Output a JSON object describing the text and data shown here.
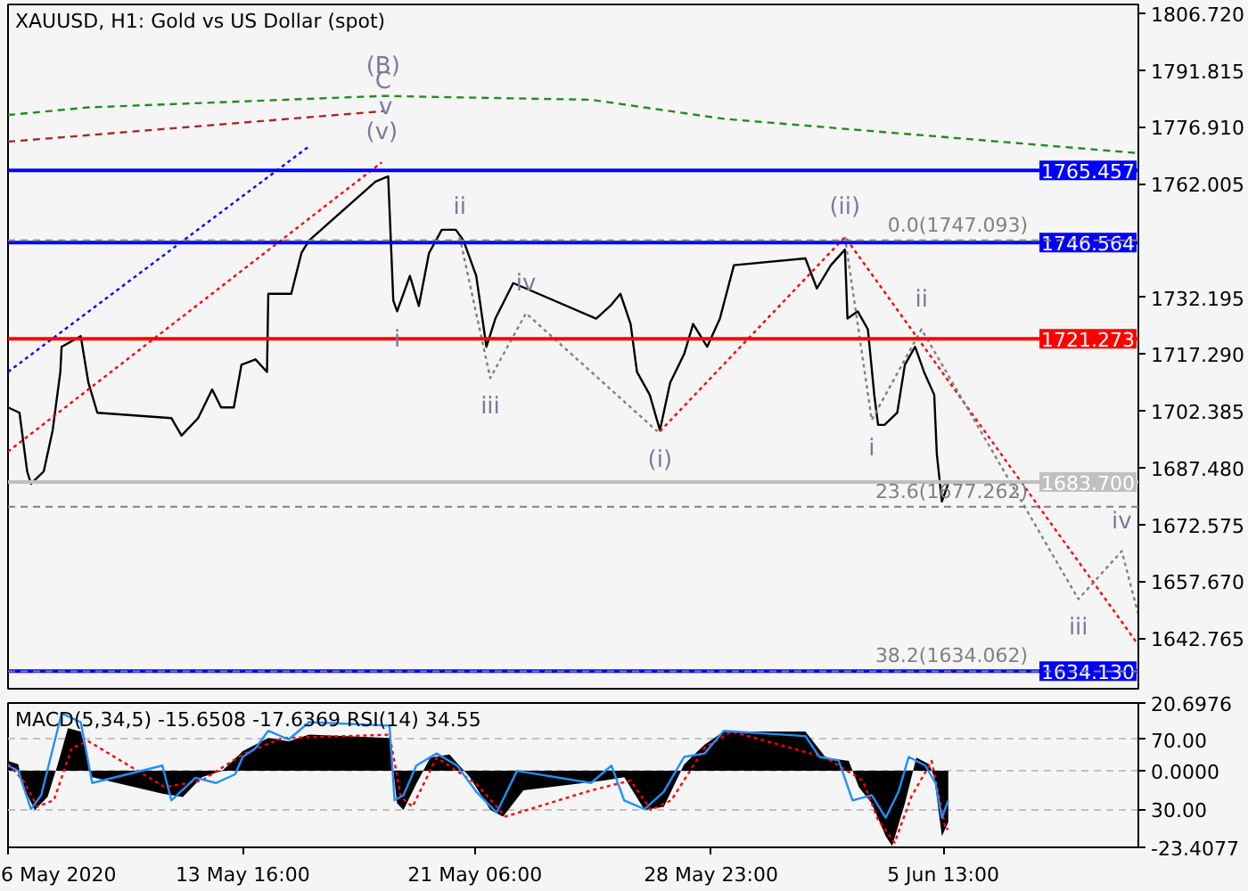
{
  "chart_data": [
    {
      "type": "line",
      "title": "XAUUSD, H1:  Gold vs US Dollar (spot)",
      "tick_labels": "y",
      "grid": false,
      "xlim": [
        "2020-05-06T00:00",
        "2020-06-11T22:00"
      ],
      "ylim": [
        1629.5,
        1809.0
      ],
      "yticks": [
        {
          "value": 1806.72,
          "label": "1806.720"
        },
        {
          "value": 1791.815,
          "label": "1791.815"
        },
        {
          "value": 1776.91,
          "label": "1776.910"
        },
        {
          "value": 1762.005,
          "label": "1762.005"
        },
        {
          "value": 1732.195,
          "label": "1732.195"
        },
        {
          "value": 1717.29,
          "label": "1717.290"
        },
        {
          "value": 1702.385,
          "label": "1702.385"
        },
        {
          "value": 1687.48,
          "label": "1687.480"
        },
        {
          "value": 1672.575,
          "label": "1672.575"
        },
        {
          "value": 1657.67,
          "label": "1657.670"
        },
        {
          "value": 1642.765,
          "label": "1642.765"
        }
      ],
      "series": [
        {
          "color": "#000000",
          "line_style": "solid",
          "x": [
            "2020-05-06T00:00",
            "2020-05-06T09:00",
            "2020-05-06T15:00",
            "2020-05-06T18:00",
            "2020-05-07T04:00",
            "2020-05-07T11:00",
            "2020-05-07T17:00",
            "2020-05-07T18:00",
            "2020-05-08T09:00",
            "2020-05-08T15:00",
            "2020-05-08T22:00",
            "2020-05-11T08:00",
            "2020-05-11T16:00",
            "2020-05-12T05:00",
            "2020-05-12T16:00",
            "2020-05-12T23:00",
            "2020-05-13T09:00",
            "2020-05-13T15:00",
            "2020-05-14T02:00",
            "2020-05-14T11:00",
            "2020-05-14T12:00",
            "2020-05-15T06:00",
            "2020-05-15T14:00",
            "2020-05-15T20:00",
            "2020-05-18T00:00",
            "2020-05-18T10:00",
            "2020-05-18T14:00",
            "2020-05-18T17:00",
            "2020-05-19T03:00",
            "2020-05-19T10:00",
            "2020-05-19T18:00",
            "2020-05-20T04:00",
            "2020-05-20T15:00",
            "2020-05-20T21:00",
            "2020-05-21T07:00",
            "2020-05-21T15:00",
            "2020-05-21T22:00",
            "2020-05-22T12:00",
            "2020-05-22T22:00",
            "2020-05-25T05:00",
            "2020-05-25T16:00",
            "2020-05-26T00:00",
            "2020-05-26T08:00",
            "2020-05-26T13:00",
            "2020-05-26T23:00",
            "2020-05-27T07:00",
            "2020-05-27T15:00",
            "2020-05-28T02:00",
            "2020-05-28T09:00",
            "2020-05-28T20:00",
            "2020-05-29T06:00",
            "2020-05-29T17:00",
            "2020-06-01T01:00",
            "2020-06-01T10:00",
            "2020-06-01T21:00",
            "2020-06-02T08:00",
            "2020-06-02T10:00",
            "2020-06-02T18:00",
            "2020-06-03T02:00",
            "2020-06-03T07:00",
            "2020-06-03T10:00",
            "2020-06-03T15:00",
            "2020-06-04T01:00",
            "2020-06-04T07:00",
            "2020-06-04T15:00",
            "2020-06-04T22:00",
            "2020-06-05T06:00",
            "2020-06-05T08:00",
            "2020-06-05T12:00",
            "2020-06-05T17:00"
          ],
          "values": [
            1703.3,
            1701.9,
            1686.5,
            1683.3,
            1686.5,
            1697.3,
            1712.6,
            1719.2,
            1722.0,
            1709.8,
            1701.9,
            1700.5,
            1695.9,
            1700.5,
            1708.0,
            1703.3,
            1703.3,
            1714.5,
            1715.9,
            1712.6,
            1733.1,
            1733.1,
            1743.8,
            1747.1,
            1762.5,
            1763.9,
            1731.3,
            1728.5,
            1737.8,
            1729.9,
            1743.8,
            1749.9,
            1749.9,
            1747.1,
            1737.8,
            1719.2,
            1726.6,
            1735.9,
            1734.5,
            1726.6,
            1729.9,
            1733.1,
            1725.2,
            1712.6,
            1706.6,
            1697.3,
            1709.8,
            1717.3,
            1725.2,
            1719.2,
            1726.6,
            1740.6,
            1742.4,
            1734.5,
            1740.6,
            1744.7,
            1726.6,
            1728.5,
            1723.8,
            1706.6,
            1698.7,
            1698.7,
            1701.9,
            1714.5,
            1719.2,
            1712.6,
            1706.6,
            1691.2,
            1678.6,
            1683.3
          ]
        },
        {
          "color": "#228b22",
          "line_style": "dashed",
          "x": [
            "2020-05-06T00:00",
            "2020-05-08T15:00",
            "2020-05-18T06:00",
            "2020-05-25T01:00",
            "2020-05-29T09:00",
            "2020-06-11T22:00"
          ],
          "values": [
            1780.0,
            1782.0,
            1785.0,
            1784.0,
            1779.0,
            1770.0
          ]
        },
        {
          "color": "#a52a2a",
          "line_style": "dashed",
          "x": [
            "2020-05-06T00:00",
            "2020-05-18T06:00"
          ],
          "values": [
            1773.0,
            1781.0
          ]
        },
        {
          "color": "#0000ff",
          "line_style": "dotted",
          "x": [
            "2020-05-06T00:00",
            "2020-05-15T20:00"
          ],
          "values": [
            1712.6,
            1771.8
          ]
        },
        {
          "color": "#ff0000",
          "line_style": "dotted",
          "x": [
            "2020-05-06T00:00",
            "2020-05-18T05:00"
          ],
          "values": [
            1691.7,
            1767.6
          ]
        },
        {
          "color": "#ff0000",
          "line_style": "dotted",
          "x": [
            "2020-05-27T07:00",
            "2020-06-02T08:00",
            "2020-06-11T22:00"
          ],
          "values": [
            1697.0,
            1748.0,
            1641.0
          ]
        },
        {
          "color": "#808080",
          "line_style": "dotted",
          "x": [
            "2020-05-20T18:00",
            "2020-05-21T18:00",
            "2020-05-22T22:00",
            "2020-05-27T05:00"
          ],
          "values": [
            1748.0,
            1711.0,
            1728.0,
            1697.0
          ]
        },
        {
          "color": "#808080",
          "line_style": "dotted",
          "x": [
            "2020-06-02T08:00",
            "2020-06-03T05:00",
            "2020-06-04T20:00",
            "2020-06-09T23:00",
            "2020-06-11T09:00",
            "2020-06-11T22:00"
          ],
          "values": [
            1748.0,
            1700.0,
            1723.8,
            1653.0,
            1665.6,
            1649.0
          ]
        }
      ],
      "ref_lines": [
        {
          "axis": "y",
          "value": 1765.457,
          "label": "1765.457",
          "color": "#0000ff",
          "line_style": "solid"
        },
        {
          "axis": "y",
          "value": 1746.564,
          "label": "1746.564",
          "color": "#0000ff",
          "line_style": "solid"
        },
        {
          "axis": "y",
          "value": 1721.273,
          "label": "1721.273",
          "color": "#ff0000",
          "line_style": "solid"
        },
        {
          "axis": "y",
          "value": 1683.7,
          "label": "1683.700",
          "color": "#c0c0c0",
          "line_style": "solid"
        },
        {
          "axis": "y",
          "value": 1634.13,
          "label": "1634.130",
          "color": "#0000ff",
          "line_style": "solid"
        },
        {
          "axis": "y",
          "value": 1747.093,
          "label": "0.0(1747.093)",
          "color": "#808080",
          "line_style": "dashed"
        },
        {
          "axis": "y",
          "value": 1677.262,
          "label": "23.6(1677.262)",
          "color": "#808080",
          "line_style": "dashed"
        },
        {
          "axis": "y",
          "value": 1634.062,
          "label": "38.2(1634.062)",
          "color": "#808080",
          "line_style": "dashed"
        }
      ],
      "annotations": [
        {
          "text": "(B)",
          "x": "2020-05-18T06:00",
          "y": 1785.0
        },
        {
          "text": "C",
          "x": "2020-05-18T06:00",
          "y": 1781.0
        },
        {
          "text": "v",
          "x": "2020-05-18T08:00",
          "y": 1782.0
        },
        {
          "text": "(v)",
          "x": "2020-05-18T05:00",
          "y": 1767.6
        },
        {
          "text": "ii",
          "x": "2020-05-20T18:00",
          "y": 1748.0
        },
        {
          "text": "i",
          "x": "2020-05-18T17:00",
          "y": 1728.5
        },
        {
          "text": "iii",
          "x": "2020-05-21T18:00",
          "y": 1711.0
        },
        {
          "text": "iv",
          "x": "2020-05-22T22:00",
          "y": 1728.0
        },
        {
          "text": "(i)",
          "x": "2020-05-27T07:00",
          "y": 1697.0
        },
        {
          "text": "(ii)",
          "x": "2020-06-02T08:00",
          "y": 1748.0
        },
        {
          "text": "i",
          "x": "2020-06-03T05:00",
          "y": 1700.0
        },
        {
          "text": "ii",
          "x": "2020-06-04T20:00",
          "y": 1723.8
        },
        {
          "text": "iii",
          "x": "2020-06-09T23:00",
          "y": 1653.0
        },
        {
          "text": "iv",
          "x": "2020-06-11T09:00",
          "y": 1665.6
        }
      ]
    },
    {
      "type": "area",
      "title": "MACD(5,34,5) -15.6508 -17.6369 RSI(14) 34.55",
      "grid": "y",
      "xlim": [
        "2020-05-06T00:00",
        "2020-06-11T22:00"
      ],
      "ylim": [
        -23.4077,
        20.6976
      ],
      "y2lim": [
        8,
        91
      ],
      "xticks": [
        {
          "value": "2020-05-06T00:00",
          "label": "6 May 2020"
        },
        {
          "value": "2020-05-13T16:00",
          "label": "13 May 16:00"
        },
        {
          "value": "2020-05-21T06:00",
          "label": "21 May 06:00"
        },
        {
          "value": "2020-05-28T23:00",
          "label": "28 May 23:00"
        },
        {
          "value": "2020-06-05T13:00",
          "label": "5 Jun 13:00"
        }
      ],
      "yticks": [
        {
          "value": 20.6976,
          "label": "20.6976"
        },
        {
          "value": 0,
          "label": "0.0000"
        },
        {
          "value": -23.4077,
          "label": "-23.4077"
        }
      ],
      "y2ticks": [
        {
          "value": 70,
          "label": "70.00"
        },
        {
          "value": 30,
          "label": "30.00"
        }
      ],
      "series": [
        {
          "type": "area",
          "color": "#000000",
          "x": [
            "2020-05-06T00:00",
            "2020-05-06T08:00",
            "2020-05-06T12:00",
            "2020-05-06T21:00",
            "2020-05-07T07:00",
            "2020-05-07T15:00",
            "2020-05-07T23:00",
            "2020-05-08T09:00",
            "2020-05-08T18:00",
            "2020-05-11T01:00",
            "2020-05-11T17:00",
            "2020-05-12T08:00",
            "2020-05-13T00:00",
            "2020-05-13T16:00",
            "2020-05-14T12:00",
            "2020-05-15T04:00",
            "2020-05-15T20:00",
            "2020-05-18T11:00",
            "2020-05-18T17:00",
            "2020-05-18T22:00",
            "2020-05-19T08:00",
            "2020-05-19T19:00",
            "2020-05-20T10:00",
            "2020-05-21T02:00",
            "2020-05-21T18:00",
            "2020-05-22T04:00",
            "2020-05-22T20:00",
            "2020-05-25T11:00",
            "2020-05-26T03:00",
            "2020-05-26T19:00",
            "2020-05-27T10:00",
            "2020-05-28T02:00",
            "2020-05-28T18:00",
            "2020-05-29T09:00",
            "2020-06-01T01:00",
            "2020-06-01T17:00",
            "2020-06-02T11:00",
            "2020-06-02T19:00",
            "2020-06-03T05:00",
            "2020-06-03T16:00",
            "2020-06-03T21:00",
            "2020-06-04T07:00",
            "2020-06-04T16:00",
            "2020-06-05T02:00",
            "2020-06-05T06:00",
            "2020-06-05T12:00",
            "2020-06-05T17:00"
          ],
          "values": [
            3,
            2,
            -5,
            -12,
            -8,
            2,
            13,
            12,
            -2,
            -7,
            -8,
            -2,
            0,
            6,
            10,
            9,
            11,
            10,
            -10,
            -12,
            -4,
            4,
            5,
            -2,
            -12,
            -14,
            -6,
            -3,
            -2,
            -12,
            -11,
            2,
            8,
            12,
            12,
            4,
            3,
            -5,
            -10,
            -20,
            -23,
            -10,
            4,
            2,
            -2,
            -20,
            -15.7
          ]
        },
        {
          "type": "line",
          "color": "#ff0000",
          "line_style": "dotted",
          "x": [
            "2020-05-06T00:00",
            "2020-05-06T12:00",
            "2020-05-06T23:00",
            "2020-05-07T12:00",
            "2020-05-08T02:00",
            "2020-05-08T15:00",
            "2020-05-11T03:00",
            "2020-05-12T08:00",
            "2020-05-13T16:00",
            "2020-05-14T23:00",
            "2020-05-18T11:00",
            "2020-05-18T20:00",
            "2020-05-19T05:00",
            "2020-05-20T00:00",
            "2020-05-21T07:00",
            "2020-05-22T06:00",
            "2020-05-25T01:00",
            "2020-05-26T08:00",
            "2020-05-27T00:00",
            "2020-05-27T16:00",
            "2020-05-28T18:00",
            "2020-05-29T15:00",
            "2020-06-01T17:00",
            "2020-06-02T22:00",
            "2020-06-03T10:00",
            "2020-06-03T23:00",
            "2020-06-04T12:00",
            "2020-06-05T04:00",
            "2020-06-05T15:00",
            "2020-06-05T17:00"
          ],
          "values": [
            2,
            -3,
            -11,
            -9,
            7,
            9,
            -5,
            -3,
            5,
            10,
            11,
            -8,
            -11,
            4,
            -4,
            -14,
            -6,
            -3,
            -12,
            -9,
            7,
            12,
            4,
            -3,
            -15,
            -22,
            -8,
            3,
            -18,
            -17.6
          ]
        },
        {
          "type": "line",
          "axis": "y2",
          "color": "#1e90ff",
          "line_style": "solid",
          "x": [
            "2020-05-06T00:00",
            "2020-05-06T08:00",
            "2020-05-06T18:00",
            "2020-05-07T02:00",
            "2020-05-07T18:00",
            "2020-05-08T09:00",
            "2020-05-08T18:00",
            "2020-05-11T01:00",
            "2020-05-11T08:00",
            "2020-05-12T03:00",
            "2020-05-12T19:00",
            "2020-05-13T10:00",
            "2020-05-13T16:00",
            "2020-05-14T02:00",
            "2020-05-14T12:00",
            "2020-05-15T04:00",
            "2020-05-15T20:00",
            "2020-05-18T11:00",
            "2020-05-18T15:00",
            "2020-05-18T22:00",
            "2020-05-19T08:00",
            "2020-05-20T00:00",
            "2020-05-20T16:00",
            "2020-05-21T07:00",
            "2020-05-21T23:00",
            "2020-05-22T15:00",
            "2020-05-25T01:00",
            "2020-05-25T17:00",
            "2020-05-26T03:00",
            "2020-05-26T19:00",
            "2020-05-27T10:00",
            "2020-05-28T02:00",
            "2020-05-28T18:00",
            "2020-05-29T09:00",
            "2020-06-01T01:00",
            "2020-06-01T12:00",
            "2020-06-02T03:00",
            "2020-06-02T14:00",
            "2020-06-03T05:00",
            "2020-06-03T16:00",
            "2020-06-04T02:00",
            "2020-06-04T10:00",
            "2020-06-04T23:00",
            "2020-06-05T07:00",
            "2020-06-05T12:00",
            "2020-06-05T17:00"
          ],
          "values": [
            55,
            52,
            30,
            38,
            85,
            80,
            45,
            55,
            35,
            48,
            45,
            50,
            60,
            65,
            75,
            70,
            80,
            78,
            35,
            38,
            55,
            62,
            55,
            40,
            28,
            52,
            45,
            55,
            35,
            30,
            40,
            60,
            62,
            75,
            72,
            60,
            58,
            35,
            38,
            25,
            40,
            60,
            55,
            45,
            25,
            35
          ]
        }
      ]
    }
  ]
}
